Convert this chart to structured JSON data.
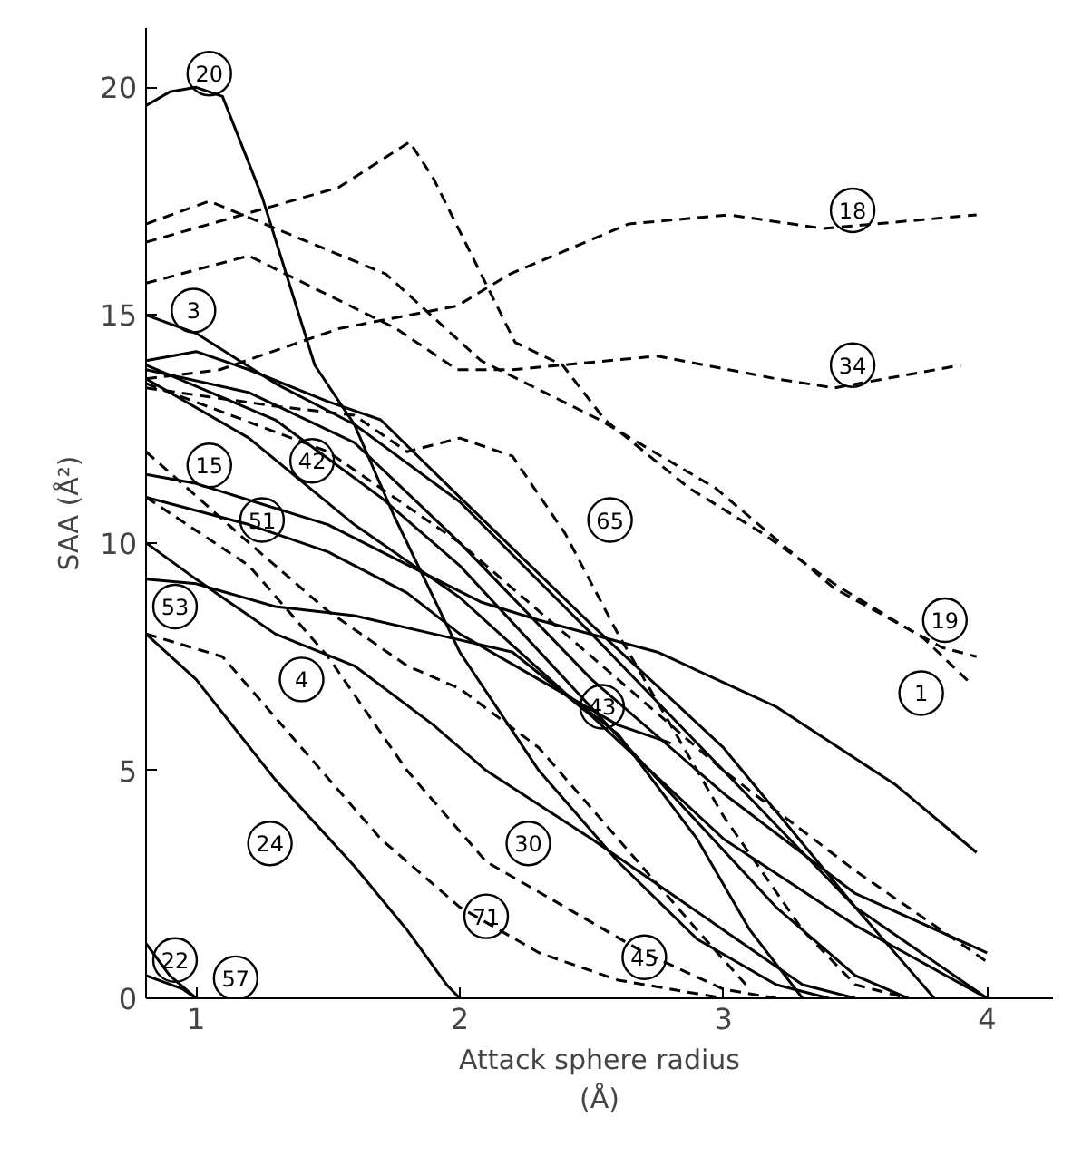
{
  "chart_data": {
    "type": "line",
    "xlabel": "Attack sphere radius\n(Å)",
    "ylabel": "SAA (Å²)",
    "xlim": [
      0.81,
      4.25
    ],
    "ylim": [
      0,
      21.3
    ],
    "xticks": [
      1,
      2,
      3,
      4
    ],
    "yticks": [
      0,
      5,
      10,
      15,
      20
    ],
    "grid": false,
    "marker": "none",
    "series": [
      {
        "color": "#000000",
        "line_style": "solid",
        "x": [
          0.81,
          0.9,
          1.0,
          1.1,
          1.25,
          1.45,
          1.6,
          1.75,
          2.0,
          2.3,
          2.6,
          2.9,
          3.2,
          3.4
        ],
        "values": [
          19.6,
          19.9,
          20.0,
          19.8,
          17.6,
          13.9,
          12.6,
          10.6,
          7.6,
          5.0,
          3.0,
          1.3,
          0.3,
          0
        ]
      },
      {
        "color": "#000000",
        "line_style": "solid",
        "x": [
          0.81,
          1.0,
          1.3,
          1.6,
          2.0,
          2.5,
          3.0,
          3.5,
          4.0
        ],
        "values": [
          15.0,
          14.6,
          13.5,
          12.6,
          10.9,
          8.0,
          5.0,
          2.0,
          0
        ]
      },
      {
        "color": "#000000",
        "line_style": "solid",
        "x": [
          0.81,
          1.0,
          1.2,
          1.5,
          1.7,
          2.0,
          2.5,
          3.0,
          3.5,
          3.8
        ],
        "values": [
          14.0,
          14.2,
          13.8,
          13.1,
          12.7,
          11.0,
          8.2,
          5.5,
          2.0,
          0
        ]
      },
      {
        "color": "#000000",
        "line_style": "solid",
        "x": [
          0.81,
          1.2,
          1.6,
          2.0,
          2.5,
          3.0,
          3.5,
          4.0
        ],
        "values": [
          13.8,
          13.3,
          12.2,
          10.0,
          7.0,
          4.5,
          2.3,
          1.0
        ]
      },
      {
        "color": "#000000",
        "line_style": "solid",
        "x": [
          0.81,
          1.3,
          1.7,
          2.0,
          2.4,
          2.8,
          3.2,
          3.5,
          3.7
        ],
        "values": [
          13.9,
          12.7,
          11.0,
          9.5,
          7.0,
          4.5,
          2.0,
          0.5,
          0
        ]
      },
      {
        "color": "#000000",
        "line_style": "solid",
        "x": [
          0.81,
          1.0,
          1.5,
          2.08,
          2.3,
          2.75,
          3.2,
          3.65,
          3.96
        ],
        "values": [
          11.5,
          11.3,
          10.4,
          8.7,
          8.3,
          7.6,
          6.4,
          4.7,
          3.2
        ]
      },
      {
        "color": "#000000",
        "line_style": "solid",
        "x": [
          0.81,
          1.2,
          1.5,
          1.8,
          2.0,
          2.3,
          2.6,
          2.8
        ],
        "values": [
          11.0,
          10.4,
          9.8,
          8.9,
          8.0,
          7.0,
          6.0,
          5.6
        ]
      },
      {
        "color": "#000000",
        "line_style": "solid",
        "x": [
          0.81,
          1.0,
          1.3,
          1.6,
          1.9,
          2.2,
          2.5,
          3.0,
          3.5,
          4.0
        ],
        "values": [
          9.2,
          9.1,
          8.6,
          8.4,
          8.0,
          7.6,
          6.2,
          3.5,
          1.6,
          0
        ]
      },
      {
        "color": "#000000",
        "line_style": "solid",
        "x": [
          0.81,
          1.0,
          1.3,
          1.6,
          1.9,
          2.1,
          2.5,
          3.0,
          3.3,
          3.5
        ],
        "values": [
          10.0,
          9.2,
          8.0,
          7.3,
          6.0,
          5.0,
          3.5,
          1.5,
          0.3,
          0
        ]
      },
      {
        "color": "#000000",
        "line_style": "solid",
        "x": [
          0.81,
          1.0,
          1.3,
          1.6,
          1.8,
          1.95,
          2.0
        ],
        "values": [
          8.0,
          7.0,
          4.8,
          2.9,
          1.5,
          0.3,
          0
        ]
      },
      {
        "color": "#000000",
        "line_style": "solid",
        "x": [
          0.81,
          0.9,
          1.0
        ],
        "values": [
          1.2,
          0.5,
          0
        ]
      },
      {
        "color": "#000000",
        "line_style": "solid",
        "x": [
          0.81,
          0.95,
          1.0
        ],
        "values": [
          0.5,
          0.2,
          0
        ]
      },
      {
        "color": "#000000",
        "line_style": "solid",
        "x": [
          0.81,
          1.2,
          1.6,
          2.0,
          2.4,
          2.6,
          2.9,
          3.1,
          3.3
        ],
        "values": [
          13.6,
          12.3,
          10.4,
          8.8,
          6.7,
          5.8,
          3.5,
          1.5,
          0
        ]
      },
      {
        "color": "#000000",
        "line_style": "dashed",
        "x": [
          0.81,
          1.09,
          1.54,
          1.99,
          2.19,
          2.64,
          3.02,
          3.38,
          3.96
        ],
        "values": [
          13.6,
          13.8,
          14.7,
          15.2,
          15.9,
          17.0,
          17.2,
          16.9,
          17.2
        ]
      },
      {
        "color": "#000000",
        "line_style": "dashed",
        "x": [
          0.81,
          1.2,
          1.76,
          1.99,
          2.2,
          2.75,
          3.2,
          3.42,
          3.9
        ],
        "values": [
          15.7,
          16.3,
          14.7,
          13.8,
          13.8,
          14.1,
          13.6,
          13.4,
          13.9
        ]
      },
      {
        "color": "#000000",
        "line_style": "dashed",
        "x": [
          0.81,
          1.05,
          1.72,
          2.08,
          2.53,
          2.97,
          3.42,
          3.83,
          3.96
        ],
        "values": [
          17.0,
          17.5,
          15.9,
          14.0,
          12.7,
          11.2,
          9.0,
          7.7,
          7.5
        ]
      },
      {
        "color": "#000000",
        "line_style": "dashed",
        "x": [
          0.81,
          1.54,
          1.81,
          1.9,
          2.21,
          2.39,
          2.55,
          2.87,
          3.15,
          3.42,
          3.76,
          3.94
        ],
        "values": [
          16.6,
          17.8,
          18.8,
          18.0,
          14.4,
          13.9,
          12.7,
          11.2,
          10.2,
          9.1,
          7.9,
          6.9
        ]
      },
      {
        "color": "#000000",
        "line_style": "dashed",
        "x": [
          0.81,
          1.3,
          1.6,
          1.8,
          2.0,
          2.2,
          2.4,
          2.6,
          2.8,
          3.0,
          3.3,
          3.5,
          3.7
        ],
        "values": [
          13.4,
          13.0,
          12.8,
          12.0,
          12.3,
          11.9,
          10.2,
          8.0,
          6.0,
          4.0,
          1.5,
          0.3,
          0
        ]
      },
      {
        "color": "#000000",
        "line_style": "dashed",
        "x": [
          0.81,
          1.2,
          1.5,
          1.8,
          2.0,
          2.3,
          2.6,
          2.9,
          3.1
        ],
        "values": [
          12.0,
          10.0,
          8.5,
          7.3,
          6.8,
          5.5,
          3.5,
          1.5,
          0.2
        ]
      },
      {
        "color": "#000000",
        "line_style": "dashed",
        "x": [
          0.81,
          1.1,
          1.4,
          1.7,
          2.0,
          2.3,
          2.6,
          3.0
        ],
        "values": [
          8.0,
          7.5,
          5.5,
          3.5,
          2.0,
          1.0,
          0.4,
          0
        ]
      },
      {
        "color": "#000000",
        "line_style": "dashed",
        "x": [
          0.81,
          1.2,
          1.5,
          1.8,
          2.1,
          2.4,
          2.7,
          3.0,
          3.2
        ],
        "values": [
          11.0,
          9.5,
          7.5,
          5.0,
          3.0,
          2.0,
          1.0,
          0.2,
          0
        ]
      },
      {
        "color": "#000000",
        "line_style": "dashed",
        "x": [
          0.81,
          1.5,
          2.0,
          2.5,
          3.0,
          3.5,
          4.0
        ],
        "values": [
          13.5,
          12.0,
          10.0,
          7.5,
          5.0,
          2.8,
          0.8
        ]
      }
    ],
    "annotations": [
      {
        "text": "20",
        "x": 1.05,
        "y": 20.3
      },
      {
        "text": "3",
        "x": 0.99,
        "y": 15.1
      },
      {
        "text": "15",
        "x": 1.05,
        "y": 11.7
      },
      {
        "text": "42",
        "x": 1.44,
        "y": 11.8
      },
      {
        "text": "51",
        "x": 1.25,
        "y": 10.5
      },
      {
        "text": "53",
        "x": 0.92,
        "y": 8.6
      },
      {
        "text": "4",
        "x": 1.4,
        "y": 7.0
      },
      {
        "text": "24",
        "x": 1.28,
        "y": 3.4
      },
      {
        "text": "22",
        "x": 0.92,
        "y": 0.84
      },
      {
        "text": "57",
        "x": 1.15,
        "y": 0.44
      },
      {
        "text": "71",
        "x": 2.1,
        "y": 1.8
      },
      {
        "text": "30",
        "x": 2.26,
        "y": 3.4
      },
      {
        "text": "45",
        "x": 2.7,
        "y": 0.9
      },
      {
        "text": "43",
        "x": 2.54,
        "y": 6.4
      },
      {
        "text": "18",
        "x": 3.49,
        "y": 17.3
      },
      {
        "text": "34",
        "x": 3.49,
        "y": 13.9
      },
      {
        "text": "65",
        "x": 2.57,
        "y": 10.5
      },
      {
        "text": "19",
        "x": 3.84,
        "y": 8.3
      },
      {
        "text": "1",
        "x": 3.75,
        "y": 6.7
      }
    ]
  }
}
